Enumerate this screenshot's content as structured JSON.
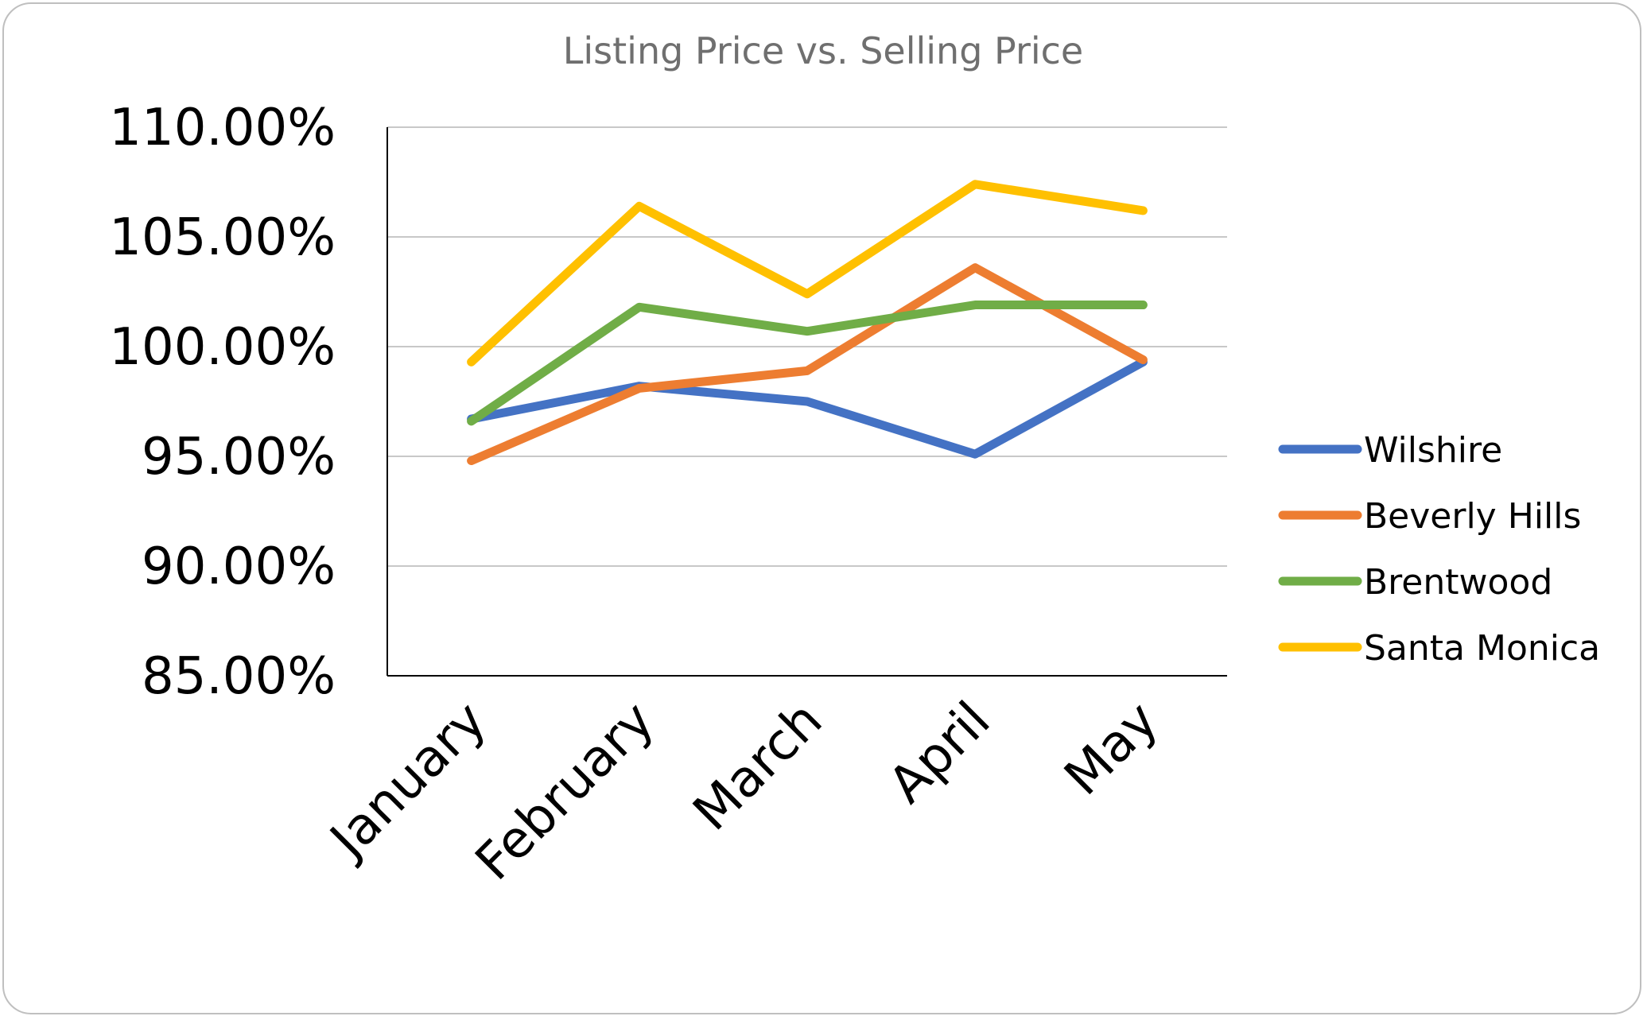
{
  "chart_data": {
    "type": "line",
    "title": "Listing Price vs. Selling Price",
    "xlabel": "",
    "ylabel": "",
    "categories": [
      "January",
      "February",
      "March",
      "April",
      "May"
    ],
    "ylim": [
      85,
      110
    ],
    "yticks": [
      85,
      90,
      95,
      100,
      105,
      110
    ],
    "ytick_labels": [
      "85.00%",
      "90.00%",
      "95.00%",
      "100.00%",
      "105.00%",
      "110.00%"
    ],
    "grid": true,
    "legend_position": "right",
    "series": [
      {
        "name": "Wilshire",
        "color": "#4472C4",
        "values": [
          96.7,
          98.2,
          97.5,
          95.1,
          99.3
        ]
      },
      {
        "name": "Beverly Hills",
        "color": "#ED7D31",
        "values": [
          94.8,
          98.1,
          98.9,
          103.6,
          99.4
        ]
      },
      {
        "name": "Brentwood",
        "color": "#70AD47",
        "values": [
          96.6,
          101.8,
          100.7,
          101.9,
          101.9
        ]
      },
      {
        "name": "Santa Monica",
        "color": "#FFC000",
        "values": [
          99.3,
          106.4,
          102.4,
          107.4,
          106.2
        ]
      }
    ]
  }
}
